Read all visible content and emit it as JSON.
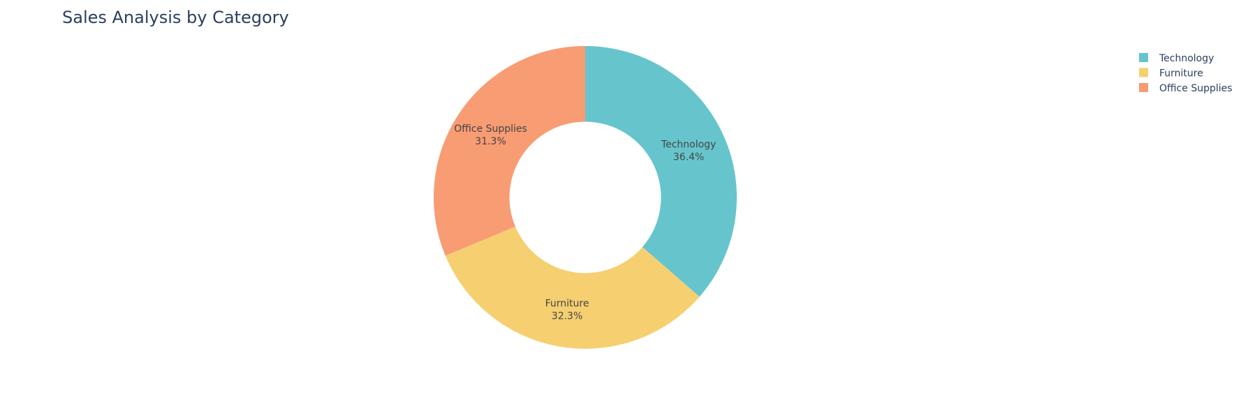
{
  "chart_data": {
    "type": "pie",
    "title": "Sales Analysis by Category",
    "hole": 0.5,
    "legend_position": "top-right",
    "slices": [
      {
        "label": "Technology",
        "value": 36.4,
        "percent_label": "36.4%",
        "color": "#66C5CC"
      },
      {
        "label": "Furniture",
        "value": 32.3,
        "percent_label": "32.3%",
        "color": "#F6CF71"
      },
      {
        "label": "Office Supplies",
        "value": 31.3,
        "percent_label": "31.3%",
        "color": "#F89C74"
      }
    ]
  },
  "colors": {
    "title": "#2A3F5F",
    "legend_text": "#2A3F5F",
    "slice_label_text": "#444444",
    "background": "#FFFFFF"
  }
}
